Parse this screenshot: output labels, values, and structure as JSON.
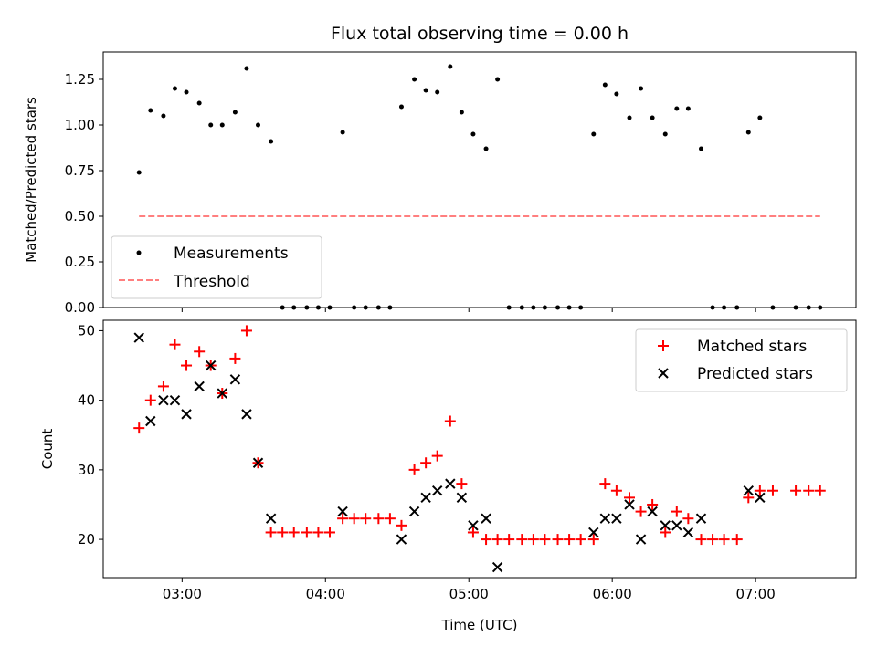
{
  "figure_title": "Flux total observing time = 0.00 h",
  "colors": {
    "measurement": "#000000",
    "threshold": "#ff7f7f",
    "matched": "#ff0000",
    "predicted": "#000000"
  },
  "chart_data": [
    {
      "type": "scatter",
      "title": "Flux total observing time = 0.00 h",
      "xlabel": "",
      "ylabel": "Matched/Predicted stars",
      "xlim_hours": [
        2.45,
        7.7
      ],
      "ylim": [
        0,
        1.4
      ],
      "yticks": [
        0,
        0.25,
        0.5,
        0.75,
        1.0,
        1.25
      ],
      "ytick_labels": [
        "0.00",
        "0.25",
        "0.50",
        "0.75",
        "1.00",
        "1.25"
      ],
      "grid": false,
      "legend_position": "lower-left",
      "series": [
        {
          "name": "Measurements",
          "marker": "dot",
          "points": [
            [
              2.7,
              0.74
            ],
            [
              2.78,
              1.08
            ],
            [
              2.87,
              1.05
            ],
            [
              2.95,
              1.2
            ],
            [
              3.03,
              1.18
            ],
            [
              3.12,
              1.12
            ],
            [
              3.2,
              1.0
            ],
            [
              3.28,
              1.0
            ],
            [
              3.37,
              1.07
            ],
            [
              3.45,
              1.31
            ],
            [
              3.53,
              1.0
            ],
            [
              3.62,
              0.91
            ],
            [
              3.7,
              0
            ],
            [
              3.78,
              0
            ],
            [
              3.87,
              0
            ],
            [
              3.95,
              0
            ],
            [
              4.03,
              0
            ],
            [
              4.12,
              0.96
            ],
            [
              4.2,
              0
            ],
            [
              4.28,
              0
            ],
            [
              4.37,
              0
            ],
            [
              4.45,
              0
            ],
            [
              4.53,
              1.1
            ],
            [
              4.62,
              1.25
            ],
            [
              4.7,
              1.19
            ],
            [
              4.78,
              1.18
            ],
            [
              4.87,
              1.32
            ],
            [
              4.95,
              1.07
            ],
            [
              5.03,
              0.95
            ],
            [
              5.12,
              0.87
            ],
            [
              5.2,
              1.25
            ],
            [
              5.28,
              0
            ],
            [
              5.37,
              0
            ],
            [
              5.45,
              0
            ],
            [
              5.53,
              0
            ],
            [
              5.62,
              0
            ],
            [
              5.7,
              0
            ],
            [
              5.78,
              0
            ],
            [
              5.87,
              0.95
            ],
            [
              5.95,
              1.22
            ],
            [
              6.03,
              1.17
            ],
            [
              6.12,
              1.04
            ],
            [
              6.2,
              1.2
            ],
            [
              6.28,
              1.04
            ],
            [
              6.37,
              0.95
            ],
            [
              6.45,
              1.09
            ],
            [
              6.53,
              1.09
            ],
            [
              6.62,
              0.87
            ],
            [
              6.7,
              0
            ],
            [
              6.78,
              0
            ],
            [
              6.87,
              0
            ],
            [
              6.95,
              0.96
            ],
            [
              7.03,
              1.04
            ],
            [
              7.12,
              0
            ],
            [
              7.28,
              0
            ],
            [
              7.37,
              0
            ],
            [
              7.45,
              0
            ]
          ]
        },
        {
          "name": "Threshold",
          "marker": "dashed-line",
          "points": [
            [
              2.7,
              0.5
            ],
            [
              7.45,
              0.5
            ]
          ]
        }
      ]
    },
    {
      "type": "scatter",
      "title": "",
      "xlabel": "Time (UTC)",
      "ylabel": "Count",
      "xlim_hours": [
        2.45,
        7.7
      ],
      "ylim": [
        14.5,
        51.5
      ],
      "yticks": [
        20,
        30,
        40,
        50
      ],
      "ytick_labels": [
        "20",
        "30",
        "40",
        "50"
      ],
      "xticks_hours": [
        3,
        4,
        5,
        6,
        7
      ],
      "xtick_labels": [
        "03:00",
        "04:00",
        "05:00",
        "06:00",
        "07:00"
      ],
      "grid": false,
      "legend_position": "upper-right",
      "series": [
        {
          "name": "Matched stars",
          "marker": "plus",
          "points": [
            [
              2.7,
              36
            ],
            [
              2.78,
              40
            ],
            [
              2.87,
              42
            ],
            [
              2.95,
              48
            ],
            [
              3.03,
              45
            ],
            [
              3.12,
              47
            ],
            [
              3.2,
              45
            ],
            [
              3.28,
              41
            ],
            [
              3.37,
              46
            ],
            [
              3.45,
              50
            ],
            [
              3.53,
              31
            ],
            [
              3.62,
              21
            ],
            [
              3.7,
              21
            ],
            [
              3.78,
              21
            ],
            [
              3.87,
              21
            ],
            [
              3.95,
              21
            ],
            [
              4.03,
              21
            ],
            [
              4.12,
              23
            ],
            [
              4.2,
              23
            ],
            [
              4.28,
              23
            ],
            [
              4.37,
              23
            ],
            [
              4.45,
              23
            ],
            [
              4.53,
              22
            ],
            [
              4.62,
              30
            ],
            [
              4.7,
              31
            ],
            [
              4.78,
              32
            ],
            [
              4.87,
              37
            ],
            [
              4.95,
              28
            ],
            [
              5.03,
              21
            ],
            [
              5.12,
              20
            ],
            [
              5.2,
              20
            ],
            [
              5.28,
              20
            ],
            [
              5.37,
              20
            ],
            [
              5.45,
              20
            ],
            [
              5.53,
              20
            ],
            [
              5.62,
              20
            ],
            [
              5.7,
              20
            ],
            [
              5.78,
              20
            ],
            [
              5.87,
              20
            ],
            [
              5.95,
              28
            ],
            [
              6.03,
              27
            ],
            [
              6.12,
              26
            ],
            [
              6.2,
              24
            ],
            [
              6.28,
              25
            ],
            [
              6.37,
              21
            ],
            [
              6.45,
              24
            ],
            [
              6.53,
              23
            ],
            [
              6.62,
              20
            ],
            [
              6.7,
              20
            ],
            [
              6.78,
              20
            ],
            [
              6.87,
              20
            ],
            [
              6.95,
              26
            ],
            [
              7.03,
              27
            ],
            [
              7.12,
              27
            ],
            [
              7.28,
              27
            ],
            [
              7.37,
              27
            ],
            [
              7.45,
              27
            ]
          ]
        },
        {
          "name": "Predicted stars",
          "marker": "x",
          "points": [
            [
              2.7,
              49
            ],
            [
              2.78,
              37
            ],
            [
              2.87,
              40
            ],
            [
              2.95,
              40
            ],
            [
              3.03,
              38
            ],
            [
              3.12,
              42
            ],
            [
              3.2,
              45
            ],
            [
              3.28,
              41
            ],
            [
              3.37,
              43
            ],
            [
              3.45,
              38
            ],
            [
              3.53,
              31
            ],
            [
              3.62,
              23
            ],
            [
              4.12,
              24
            ],
            [
              4.53,
              20
            ],
            [
              4.62,
              24
            ],
            [
              4.7,
              26
            ],
            [
              4.78,
              27
            ],
            [
              4.87,
              28
            ],
            [
              4.95,
              26
            ],
            [
              5.03,
              22
            ],
            [
              5.12,
              23
            ],
            [
              5.2,
              16
            ],
            [
              5.87,
              21
            ],
            [
              5.95,
              23
            ],
            [
              6.03,
              23
            ],
            [
              6.12,
              25
            ],
            [
              6.2,
              20
            ],
            [
              6.28,
              24
            ],
            [
              6.37,
              22
            ],
            [
              6.45,
              22
            ],
            [
              6.53,
              21
            ],
            [
              6.62,
              23
            ],
            [
              6.95,
              27
            ],
            [
              7.03,
              26
            ]
          ]
        }
      ]
    }
  ]
}
